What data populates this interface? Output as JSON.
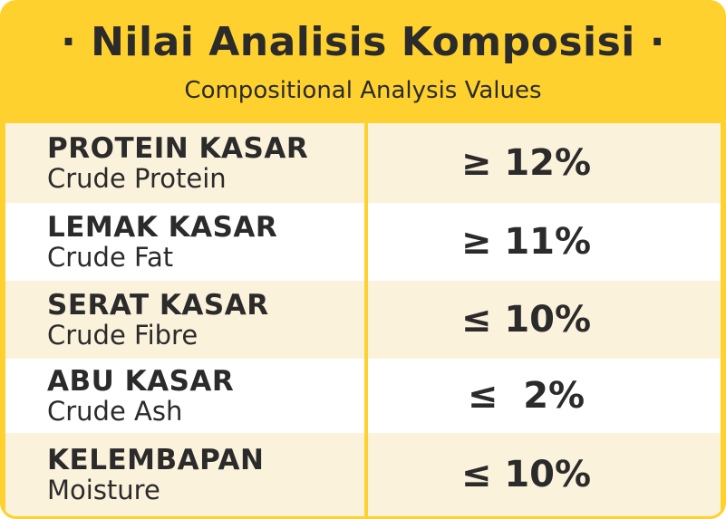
{
  "header": {
    "title": "· Nilai Analisis Komposisi ·",
    "subtitle": "Compositional Analysis Values"
  },
  "rows": [
    {
      "label_id": "PROTEIN KASAR",
      "label_en": "Crude Protein",
      "value": "≥ 12%"
    },
    {
      "label_id": "LEMAK KASAR",
      "label_en": "Crude Fat",
      "value": "≥ 11%"
    },
    {
      "label_id": "SERAT KASAR",
      "label_en": "Crude Fibre",
      "value": "≤ 10%"
    },
    {
      "label_id": "ABU KASAR",
      "label_en": "Crude Ash",
      "value": "≤  2%"
    },
    {
      "label_id": "KELEMBAPAN",
      "label_en": "Moisture",
      "value": "≤ 10%"
    }
  ],
  "colors": {
    "accent": "#FFD12E",
    "row_shade": "#FBF2DC",
    "text": "#2b2b2b"
  }
}
